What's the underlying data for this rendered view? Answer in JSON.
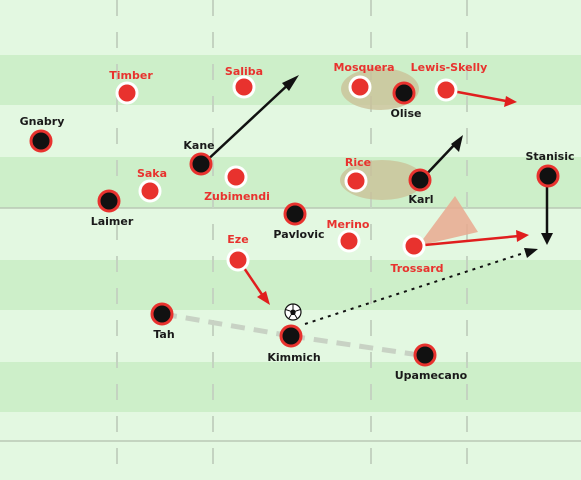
{
  "colors": {
    "pitch_light": "#e3f8e1",
    "pitch_dark": "#cdefc9",
    "line": "#b9c7b6",
    "team_black_fill": "#111111",
    "team_black_ring": "#e8322e",
    "team_red_fill": "#e8322e",
    "team_red_ring": "#ffffff",
    "arrow_black": "#111111",
    "arrow_red": "#e01e1e",
    "pass_line": "#c8d2c4",
    "highlight": "#c9bf94",
    "cone": "#e9a98f"
  },
  "players": [
    {
      "id": "gnabry",
      "name": "Gnabry",
      "team": "black"
    },
    {
      "id": "laimer",
      "name": "Laimer",
      "team": "black"
    },
    {
      "id": "kane",
      "name": "Kane",
      "team": "black"
    },
    {
      "id": "pavlovic",
      "name": "Pavlovic",
      "team": "black"
    },
    {
      "id": "olise",
      "name": "Olise",
      "team": "black"
    },
    {
      "id": "karl",
      "name": "Karl",
      "team": "black"
    },
    {
      "id": "stanisic",
      "name": "Stanisic",
      "team": "black"
    },
    {
      "id": "tah",
      "name": "Tah",
      "team": "black"
    },
    {
      "id": "kimmich",
      "name": "Kimmich",
      "team": "black"
    },
    {
      "id": "upamecano",
      "name": "Upamecano",
      "team": "black"
    },
    {
      "id": "timber",
      "name": "Timber",
      "team": "red"
    },
    {
      "id": "saliba",
      "name": "Saliba",
      "team": "red"
    },
    {
      "id": "mosquera",
      "name": "Mosquera",
      "team": "red"
    },
    {
      "id": "lewis-skelly",
      "name": "Lewis-Skelly",
      "team": "red"
    },
    {
      "id": "saka",
      "name": "Saka",
      "team": "red"
    },
    {
      "id": "zubimendi",
      "name": "Zubimendi",
      "team": "red"
    },
    {
      "id": "rice",
      "name": "Rice",
      "team": "red"
    },
    {
      "id": "merino",
      "name": "Merino",
      "team": "red"
    },
    {
      "id": "eze",
      "name": "Eze",
      "team": "red"
    },
    {
      "id": "trossard",
      "name": "Trossard",
      "team": "red"
    }
  ],
  "ball_icon": "football-icon"
}
